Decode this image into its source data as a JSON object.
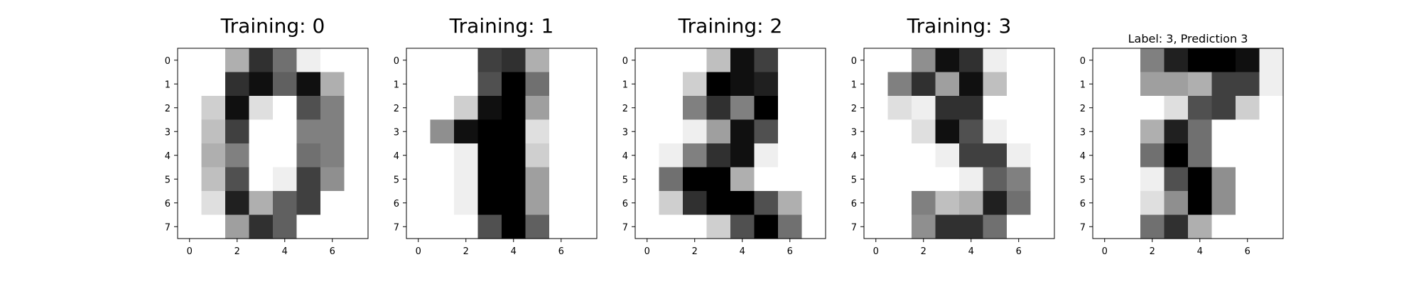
{
  "chart_data": [
    {
      "type": "heatmap",
      "title": "Training: 0",
      "colormap": "gray_r",
      "vmin": 0,
      "vmax": 16,
      "x_ticks": [
        "0",
        "2",
        "4",
        "6"
      ],
      "y_ticks": [
        "0",
        "1",
        "2",
        "3",
        "4",
        "5",
        "6",
        "7"
      ],
      "z": [
        [
          0,
          0,
          5,
          13,
          9,
          1,
          0,
          0
        ],
        [
          0,
          0,
          13,
          15,
          10,
          15,
          5,
          0
        ],
        [
          0,
          3,
          15,
          2,
          0,
          11,
          8,
          0
        ],
        [
          0,
          4,
          12,
          0,
          0,
          8,
          8,
          0
        ],
        [
          0,
          5,
          8,
          0,
          0,
          9,
          8,
          0
        ],
        [
          0,
          4,
          11,
          0,
          1,
          12,
          7,
          0
        ],
        [
          0,
          2,
          14,
          5,
          10,
          12,
          0,
          0
        ],
        [
          0,
          0,
          6,
          13,
          10,
          0,
          0,
          0
        ]
      ]
    },
    {
      "type": "heatmap",
      "title": "Training: 1",
      "colormap": "gray_r",
      "vmin": 0,
      "vmax": 16,
      "x_ticks": [
        "0",
        "2",
        "4",
        "6"
      ],
      "y_ticks": [
        "0",
        "1",
        "2",
        "3",
        "4",
        "5",
        "6",
        "7"
      ],
      "z": [
        [
          0,
          0,
          0,
          12,
          13,
          5,
          0,
          0
        ],
        [
          0,
          0,
          0,
          11,
          16,
          9,
          0,
          0
        ],
        [
          0,
          0,
          3,
          15,
          16,
          6,
          0,
          0
        ],
        [
          0,
          7,
          15,
          16,
          16,
          2,
          0,
          0
        ],
        [
          0,
          0,
          1,
          16,
          16,
          3,
          0,
          0
        ],
        [
          0,
          0,
          1,
          16,
          16,
          6,
          0,
          0
        ],
        [
          0,
          0,
          1,
          16,
          16,
          6,
          0,
          0
        ],
        [
          0,
          0,
          0,
          11,
          16,
          10,
          0,
          0
        ]
      ]
    },
    {
      "type": "heatmap",
      "title": "Training: 2",
      "colormap": "gray_r",
      "vmin": 0,
      "vmax": 16,
      "x_ticks": [
        "0",
        "2",
        "4",
        "6"
      ],
      "y_ticks": [
        "0",
        "1",
        "2",
        "3",
        "4",
        "5",
        "6",
        "7"
      ],
      "z": [
        [
          0,
          0,
          0,
          4,
          15,
          12,
          0,
          0
        ],
        [
          0,
          0,
          3,
          16,
          15,
          14,
          0,
          0
        ],
        [
          0,
          0,
          8,
          13,
          8,
          16,
          0,
          0
        ],
        [
          0,
          0,
          1,
          6,
          15,
          11,
          0,
          0
        ],
        [
          0,
          1,
          8,
          13,
          15,
          1,
          0,
          0
        ],
        [
          0,
          9,
          16,
          16,
          5,
          0,
          0,
          0
        ],
        [
          0,
          3,
          13,
          16,
          16,
          11,
          5,
          0
        ],
        [
          0,
          0,
          0,
          3,
          11,
          16,
          9,
          0
        ]
      ]
    },
    {
      "type": "heatmap",
      "title": "Training: 3",
      "colormap": "gray_r",
      "vmin": 0,
      "vmax": 16,
      "x_ticks": [
        "0",
        "2",
        "4",
        "6"
      ],
      "y_ticks": [
        "0",
        "1",
        "2",
        "3",
        "4",
        "5",
        "6",
        "7"
      ],
      "z": [
        [
          0,
          0,
          7,
          15,
          13,
          1,
          0,
          0
        ],
        [
          0,
          8,
          13,
          6,
          15,
          4,
          0,
          0
        ],
        [
          0,
          2,
          1,
          13,
          13,
          0,
          0,
          0
        ],
        [
          0,
          0,
          2,
          15,
          11,
          1,
          0,
          0
        ],
        [
          0,
          0,
          0,
          1,
          12,
          12,
          1,
          0
        ],
        [
          0,
          0,
          0,
          0,
          1,
          10,
          8,
          0
        ],
        [
          0,
          0,
          8,
          4,
          5,
          14,
          9,
          0
        ],
        [
          0,
          0,
          7,
          13,
          13,
          9,
          0,
          0
        ]
      ]
    },
    {
      "type": "heatmap",
      "title": "Label: 3, Prediction 3",
      "colormap": "gray_r",
      "vmin": 0,
      "vmax": 16,
      "x_ticks": [
        "0",
        "2",
        "4",
        "6"
      ],
      "y_ticks": [
        "0",
        "1",
        "2",
        "3",
        "4",
        "5",
        "6",
        "7"
      ],
      "z": [
        [
          0,
          0,
          8,
          14,
          16,
          16,
          15,
          1
        ],
        [
          0,
          0,
          6,
          6,
          5,
          12,
          12,
          1
        ],
        [
          0,
          0,
          0,
          2,
          11,
          12,
          3,
          0
        ],
        [
          0,
          0,
          5,
          14,
          9,
          0,
          0,
          0
        ],
        [
          0,
          0,
          9,
          16,
          9,
          0,
          0,
          0
        ],
        [
          0,
          0,
          1,
          11,
          16,
          7,
          0,
          0
        ],
        [
          0,
          0,
          2,
          7,
          16,
          7,
          0,
          0
        ],
        [
          0,
          0,
          9,
          13,
          5,
          0,
          0,
          0
        ]
      ]
    }
  ]
}
